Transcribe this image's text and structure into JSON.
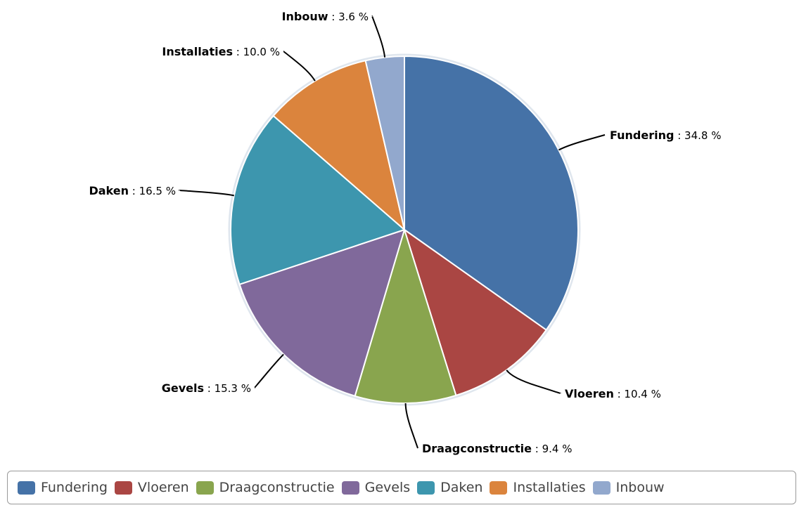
{
  "chart_data": {
    "type": "pie",
    "value_suffix": " %",
    "categories": [
      "Fundering",
      "Vloeren",
      "Draagconstructie",
      "Gevels",
      "Daken",
      "Installaties",
      "Inbouw"
    ],
    "values": [
      34.8,
      10.4,
      9.4,
      15.3,
      16.5,
      10.0,
      3.6
    ],
    "value_labels": [
      "34.8",
      "10.4",
      "9.4",
      "15.3",
      "16.5",
      "10.0",
      "3.6"
    ],
    "colors": [
      "#4572A7",
      "#AA4643",
      "#89A54E",
      "#80699B",
      "#3D96AE",
      "#DB843D",
      "#92A8CD"
    ],
    "legend": "bottom"
  }
}
